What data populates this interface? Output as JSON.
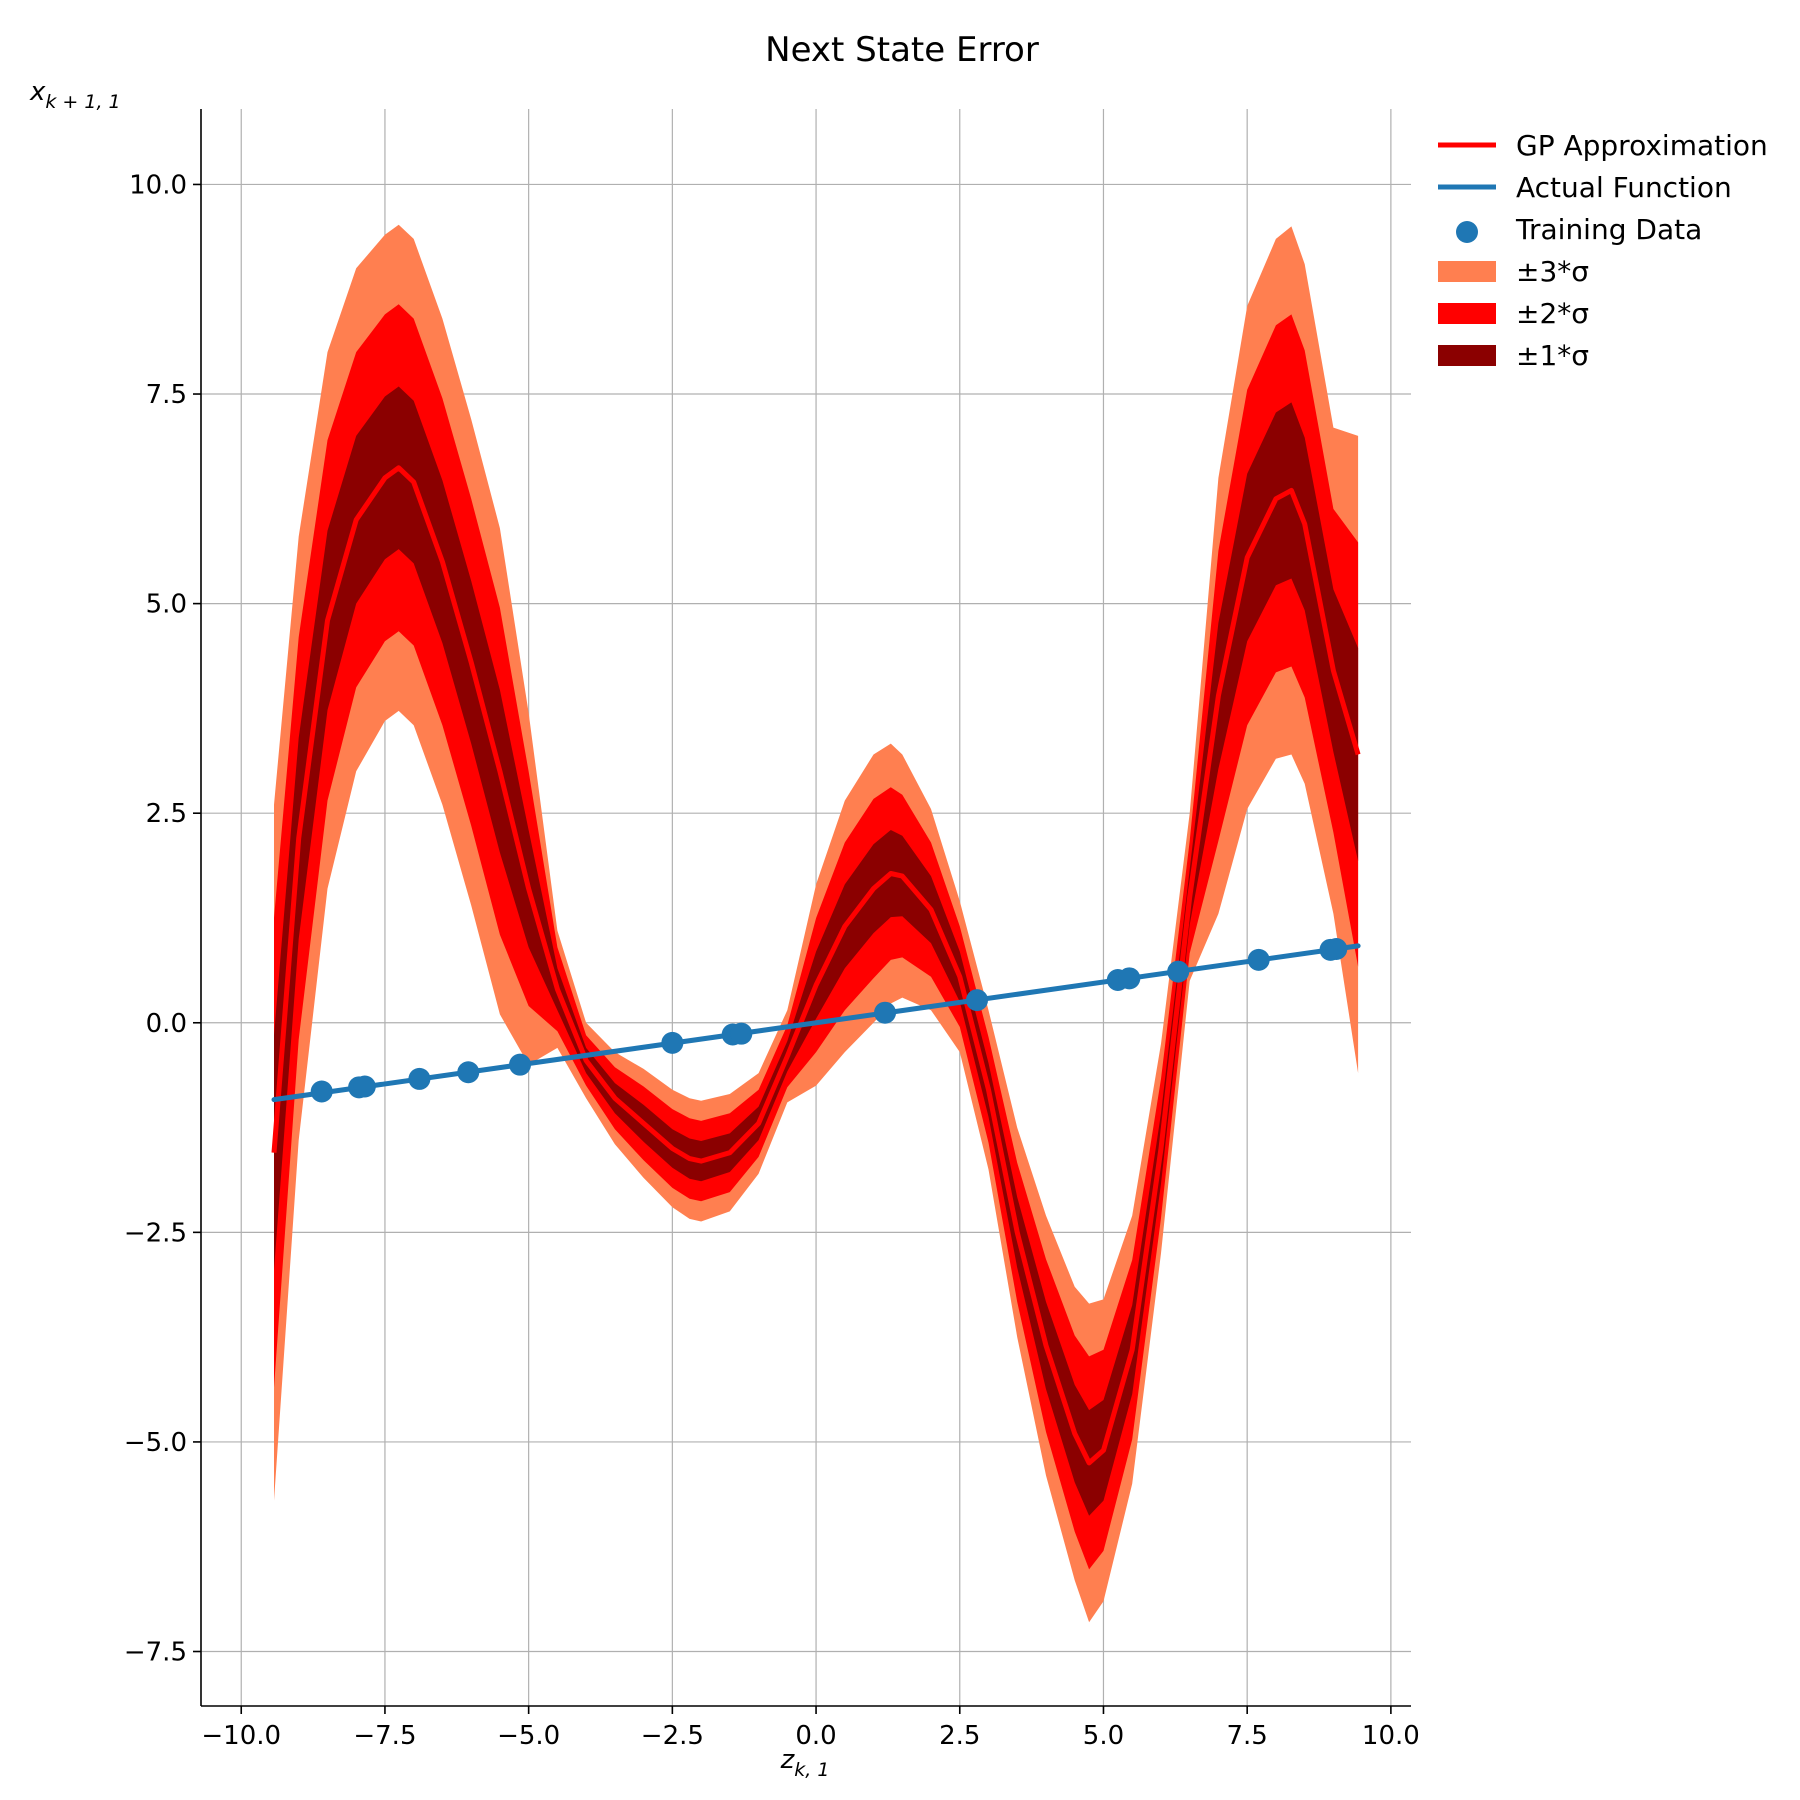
{
  "chart_data": {
    "type": "line",
    "title": "Next State Error",
    "xlabel": "z",
    "xlabel_sub": "k, 1",
    "ylabel": "x",
    "ylabel_sub": "k + 1, 1",
    "xlim": [
      -10.7,
      10.35
    ],
    "ylim": [
      -8.15,
      10.9
    ],
    "grid": true,
    "legend_position": "outside-top-right",
    "x_ticks": [
      {
        "value": -10,
        "label": "−10.0"
      },
      {
        "value": -7.5,
        "label": "−7.5"
      },
      {
        "value": -5,
        "label": "−5.0"
      },
      {
        "value": -2.5,
        "label": "−2.5"
      },
      {
        "value": 0,
        "label": "0.0"
      },
      {
        "value": 2.5,
        "label": "2.5"
      },
      {
        "value": 5,
        "label": "5.0"
      },
      {
        "value": 7.5,
        "label": "7.5"
      },
      {
        "value": 10,
        "label": "10.0"
      }
    ],
    "y_ticks": [
      {
        "value": -7.5,
        "label": "−7.5"
      },
      {
        "value": -5,
        "label": "−5.0"
      },
      {
        "value": -2.5,
        "label": "−2.5"
      },
      {
        "value": 0,
        "label": "0.0"
      },
      {
        "value": 2.5,
        "label": "2.5"
      },
      {
        "value": 5,
        "label": "5.0"
      },
      {
        "value": 7.5,
        "label": "7.5"
      },
      {
        "value": 10,
        "label": "10.0"
      }
    ],
    "x": [
      -9.43,
      -9.0,
      -8.5,
      -8.0,
      -7.5,
      -7.26,
      -7.0,
      -6.5,
      -6.0,
      -5.5,
      -5.0,
      -4.5,
      -4.0,
      -3.5,
      -3.0,
      -2.5,
      -2.2,
      -2.0,
      -1.5,
      -1.0,
      -0.5,
      0.0,
      0.5,
      1.0,
      1.3,
      1.5,
      2.0,
      2.5,
      3.0,
      3.5,
      4.0,
      4.5,
      4.75,
      5.0,
      5.5,
      6.0,
      6.5,
      7.0,
      7.5,
      8.0,
      8.27,
      8.5,
      9.0,
      9.43
    ],
    "series": [
      {
        "name": "GP Approximation",
        "color": "#ff0000",
        "values": [
          -1.55,
          2.2,
          4.8,
          6.0,
          6.5,
          6.62,
          6.45,
          5.5,
          4.3,
          3.0,
          1.6,
          0.4,
          -0.45,
          -0.9,
          -1.2,
          -1.5,
          -1.62,
          -1.65,
          -1.55,
          -1.2,
          -0.4,
          0.45,
          1.15,
          1.6,
          1.78,
          1.75,
          1.35,
          0.55,
          -0.8,
          -2.5,
          -3.85,
          -4.9,
          -5.25,
          -5.1,
          -3.9,
          -1.5,
          1.5,
          3.9,
          5.55,
          6.25,
          6.35,
          5.95,
          4.2,
          3.2
        ]
      },
      {
        "name": "Actual Function",
        "color": "#1f77b4",
        "line_x": [
          -9.43,
          9.43
        ],
        "line_y": [
          -0.917,
          0.917
        ]
      }
    ],
    "bands": [
      {
        "name": "±3*σ",
        "color": "#ff7f50",
        "halfwidth": [
          4.15,
          3.6,
          3.2,
          3.0,
          2.9,
          2.9,
          2.9,
          2.9,
          2.9,
          2.9,
          2.1,
          0.7,
          0.45,
          0.55,
          0.65,
          0.7,
          0.72,
          0.72,
          0.7,
          0.6,
          0.55,
          1.2,
          1.5,
          1.6,
          1.55,
          1.45,
          1.2,
          0.9,
          0.95,
          1.25,
          1.55,
          1.75,
          1.9,
          1.8,
          1.6,
          1.25,
          1.0,
          2.6,
          3.0,
          3.1,
          3.15,
          3.1,
          2.9,
          3.8
        ]
      },
      {
        "name": "±2*σ",
        "color": "#ff0000",
        "halfwidth": [
          2.8,
          2.4,
          2.15,
          2.0,
          1.95,
          1.95,
          1.95,
          1.95,
          1.95,
          1.95,
          1.4,
          0.5,
          0.3,
          0.37,
          0.44,
          0.47,
          0.48,
          0.48,
          0.47,
          0.4,
          0.37,
          0.8,
          1.0,
          1.07,
          1.03,
          0.97,
          0.8,
          0.6,
          0.63,
          0.83,
          1.03,
          1.17,
          1.27,
          1.2,
          1.07,
          0.83,
          0.67,
          1.73,
          2.0,
          2.07,
          2.1,
          2.07,
          1.93,
          2.53
        ]
      },
      {
        "name": "±1*σ",
        "color": "#8b0000",
        "halfwidth": [
          1.4,
          1.2,
          1.07,
          1.0,
          0.97,
          0.97,
          0.97,
          0.97,
          0.97,
          0.97,
          0.7,
          0.25,
          0.15,
          0.18,
          0.22,
          0.23,
          0.24,
          0.24,
          0.23,
          0.2,
          0.18,
          0.4,
          0.5,
          0.53,
          0.52,
          0.48,
          0.4,
          0.3,
          0.32,
          0.42,
          0.52,
          0.58,
          0.63,
          0.6,
          0.53,
          0.42,
          0.33,
          0.87,
          1.0,
          1.03,
          1.05,
          1.03,
          0.97,
          1.27
        ]
      }
    ],
    "training_data": {
      "name": "Training Data",
      "color": "#1f77b4",
      "x": [
        -8.6,
        -7.95,
        -7.85,
        -6.9,
        -6.05,
        -5.15,
        -2.5,
        -1.45,
        -1.3,
        1.2,
        2.8,
        5.25,
        5.45,
        6.3,
        7.7,
        8.95,
        9.05
      ],
      "y": [
        -0.82,
        -0.77,
        -0.76,
        -0.67,
        -0.59,
        -0.5,
        -0.24,
        -0.14,
        -0.13,
        0.12,
        0.27,
        0.51,
        0.53,
        0.61,
        0.75,
        0.87,
        0.88
      ]
    },
    "legend": [
      {
        "label": "GP Approximation",
        "kind": "line",
        "color": "#ff0000"
      },
      {
        "label": "Actual Function",
        "kind": "line",
        "color": "#1f77b4"
      },
      {
        "label": "Training Data",
        "kind": "marker",
        "color": "#1f77b4"
      },
      {
        "label": "±3*σ",
        "kind": "patch",
        "color": "#ff7f50"
      },
      {
        "label": "±2*σ",
        "kind": "patch",
        "color": "#ff0000"
      },
      {
        "label": "±1*σ",
        "kind": "patch",
        "color": "#8b0000"
      }
    ]
  }
}
